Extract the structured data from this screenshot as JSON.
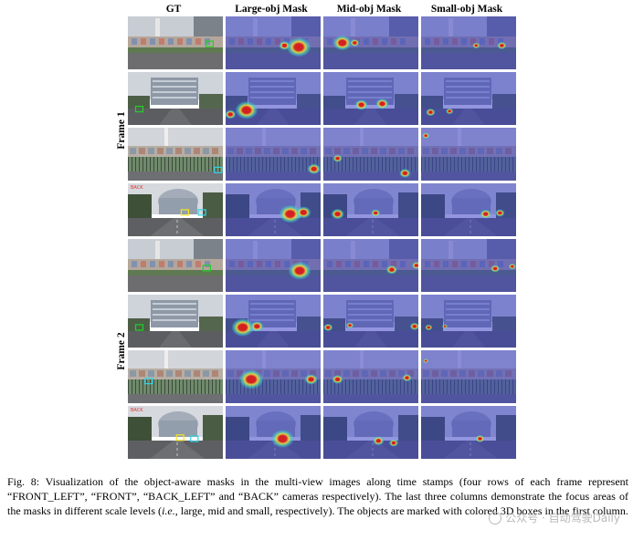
{
  "columns": [
    "GT",
    "Large-obj Mask",
    "Mid-obj Mask",
    "Small-obj Mask"
  ],
  "frames": [
    "Frame 1",
    "Frame 2"
  ],
  "scene_label_text": "BACK",
  "caption": {
    "prefix": "Fig. 8: Visualization of the object-aware masks in the multi-view images along time stamps (four rows of each frame represent “FRONT_LEFT”, “FRONT”, “BACK_LEFT” and “BACK” cameras respectively). The last three columns demonstrate the focus areas of the masks in different scale levels (",
    "ie": "i.e.",
    "suffix": ", large, mid and small, respectively). The objects are marked with colored 3D boxes in the first column."
  },
  "watermark": {
    "text": "公众号 · 自动驾驶Daily"
  },
  "colors": {
    "mask_tint": "#3b3fc4",
    "heat_core": "#d81e1e",
    "heat_mid": "#f2e23a",
    "heat_edge": "#3ad6c8",
    "gt_box_green": "#22d02a",
    "gt_box_yellow": "#f3e524",
    "gt_box_cyan": "#2fd3e6"
  },
  "rows": [
    {
      "frame": 0,
      "camera": "FRONT_LEFT",
      "scene": "wall",
      "large": [
        [
          0.77,
          0.58,
          0.13
        ],
        [
          0.62,
          0.55,
          0.06
        ]
      ],
      "mid": [
        [
          0.2,
          0.5,
          0.1
        ],
        [
          0.33,
          0.5,
          0.05
        ]
      ],
      "small": [
        [
          0.85,
          0.55,
          0.05
        ],
        [
          0.58,
          0.55,
          0.04
        ]
      ],
      "gt": [
        [
          0.86,
          0.52,
          "green"
        ]
      ]
    },
    {
      "frame": 0,
      "camera": "FRONT",
      "scene": "building",
      "large": [
        [
          0.22,
          0.72,
          0.12
        ],
        [
          0.05,
          0.8,
          0.06
        ]
      ],
      "mid": [
        [
          0.4,
          0.62,
          0.07
        ],
        [
          0.62,
          0.6,
          0.07
        ]
      ],
      "small": [
        [
          0.1,
          0.76,
          0.05
        ],
        [
          0.3,
          0.74,
          0.04
        ]
      ],
      "gt": [
        [
          0.12,
          0.7,
          "green"
        ]
      ]
    },
    {
      "frame": 0,
      "camera": "BACK_LEFT",
      "scene": "fence",
      "large": [
        [
          0.93,
          0.78,
          0.07
        ]
      ],
      "mid": [
        [
          0.86,
          0.86,
          0.06
        ],
        [
          0.15,
          0.58,
          0.05
        ]
      ],
      "small": [
        [
          0.05,
          0.15,
          0.04
        ]
      ],
      "gt": [
        [
          0.95,
          0.8,
          "cyan"
        ]
      ]
    },
    {
      "frame": 0,
      "camera": "BACK",
      "scene": "road",
      "large": [
        [
          0.68,
          0.58,
          0.12
        ],
        [
          0.82,
          0.55,
          0.08
        ]
      ],
      "mid": [
        [
          0.15,
          0.58,
          0.07
        ],
        [
          0.55,
          0.56,
          0.05
        ]
      ],
      "small": [
        [
          0.68,
          0.58,
          0.06
        ],
        [
          0.83,
          0.56,
          0.05
        ]
      ],
      "gt": [
        [
          0.6,
          0.55,
          "yellow"
        ],
        [
          0.78,
          0.55,
          "cyan"
        ]
      ]
    },
    {
      "frame": 1,
      "camera": "FRONT_LEFT",
      "scene": "wall",
      "large": [
        [
          0.78,
          0.6,
          0.12
        ]
      ],
      "mid": [
        [
          0.72,
          0.58,
          0.06
        ],
        [
          0.98,
          0.5,
          0.05
        ]
      ],
      "small": [
        [
          0.78,
          0.56,
          0.05
        ],
        [
          0.96,
          0.52,
          0.04
        ]
      ],
      "gt": [
        [
          0.83,
          0.55,
          "green"
        ]
      ]
    },
    {
      "frame": 1,
      "camera": "FRONT",
      "scene": "building",
      "large": [
        [
          0.18,
          0.62,
          0.12
        ],
        [
          0.33,
          0.6,
          0.07
        ]
      ],
      "mid": [
        [
          0.05,
          0.62,
          0.05
        ],
        [
          0.28,
          0.58,
          0.04
        ],
        [
          0.96,
          0.6,
          0.05
        ]
      ],
      "small": [
        [
          0.08,
          0.62,
          0.04
        ],
        [
          0.25,
          0.6,
          0.03
        ]
      ],
      "gt": [
        [
          0.12,
          0.62,
          "green"
        ]
      ]
    },
    {
      "frame": 1,
      "camera": "BACK_LEFT",
      "scene": "fence",
      "large": [
        [
          0.27,
          0.55,
          0.13
        ],
        [
          0.9,
          0.55,
          0.07
        ]
      ],
      "mid": [
        [
          0.15,
          0.55,
          0.06
        ],
        [
          0.88,
          0.52,
          0.05
        ]
      ],
      "small": [
        [
          0.05,
          0.2,
          0.03
        ]
      ],
      "gt": [
        [
          0.22,
          0.58,
          "cyan"
        ]
      ]
    },
    {
      "frame": 1,
      "camera": "BACK",
      "scene": "road",
      "large": [
        [
          0.6,
          0.62,
          0.12
        ]
      ],
      "mid": [
        [
          0.58,
          0.66,
          0.06
        ],
        [
          0.74,
          0.7,
          0.05
        ]
      ],
      "small": [
        [
          0.62,
          0.62,
          0.05
        ]
      ],
      "gt": [
        [
          0.55,
          0.6,
          "yellow"
        ],
        [
          0.7,
          0.62,
          "cyan"
        ]
      ]
    }
  ]
}
